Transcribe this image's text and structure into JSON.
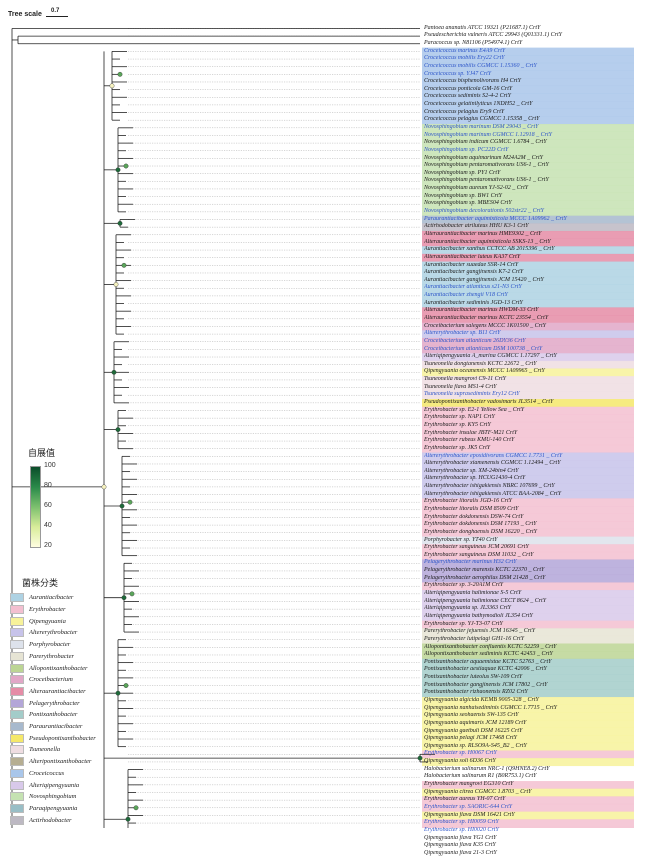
{
  "tree_scale": {
    "label": "Tree scale",
    "value": "0.7"
  },
  "bootstrap_legend": {
    "title": "自展值",
    "ticks": [
      "100",
      "80",
      "60",
      "40",
      "20"
    ]
  },
  "genus_legend_title": "菌株分类",
  "colors": {
    "Aurantiacibacter": "#aed2e3",
    "Erythrobacter": "#f3bfd0",
    "Qipengyuania": "#f7f29a",
    "Altererythrobacter": "#c7c3ea",
    "Porphyrobacter": "#dde2eb",
    "Parerythrobacter": "#e6e4d4",
    "Allopontixanthobacter": "#bcd594",
    "Croceibacterium": "#e1a7c7",
    "Alteraurantiacibacter": "#e58ca6",
    "Pelagerythrobacter": "#b3a6d8",
    "Pontixanthobacter": "#a3ccc9",
    "Paraurantiacibacter": "#a7b9cd",
    "Pseudopontixanthobacter": "#f5e86a",
    "Tsuneonella": "#efdde2",
    "Alteripontixanthobacter": "#b6ae92",
    "Croceicoccus": "#a9c6ea",
    "Alteriqipengyuania": "#d8c9ea",
    "Novosphingobium": "#c5e2b2",
    "Paraqipengyuania": "#99bec6",
    "Actirhodobacter": "#bdb9c3"
  },
  "genus_legend": [
    "Aurantiacibacter",
    "Erythrobacter",
    "Qipengyuania",
    "Altererythrobacter",
    "Porphyrobacter",
    "Parerythrobacter",
    "Allopontixanthobacter",
    "Croceibacterium",
    "Alteraurantiacibacter",
    "Pelagerythrobacter",
    "Pontixanthobacter",
    "Paraurantiacibacter",
    "Pseudopontixanthobacter",
    "Tsuneonella",
    "Alteripontixanthobacter",
    "Croceicoccus",
    "Alteriqipengyuania",
    "Novosphingobium",
    "Paraqipengyuania",
    "Actirhodobacter"
  ],
  "leaves": [
    {
      "label": "Pantoea ananatis ATCC 19321 (P21687.1) CrtY",
      "genus": "",
      "blue": false
    },
    {
      "label": "Pseudescherichia vulneris ATCC 29943 (Q01331.1) CrtY",
      "genus": "",
      "blue": false
    },
    {
      "label": "Paracoccus sp. N81106 (P54974.1) CrtY",
      "genus": "",
      "blue": false
    },
    {
      "label": "Croceicoccus marinus E4A9    CrtY",
      "genus": "Croceicoccus",
      "blue": true
    },
    {
      "label": "Croceicoccus mobilis Ery22    CrtY",
      "genus": "Croceicoccus",
      "blue": true
    },
    {
      "label": "Croceicoccus mobilis CGMCC 1.15360 _ CrtY",
      "genus": "Croceicoccus",
      "blue": true
    },
    {
      "label": "Croceicoccus sp. YJ47    CrtY",
      "genus": "Croceicoccus",
      "blue": true
    },
    {
      "label": "Croceicoccus bisphenolivorans H4    CrtY",
      "genus": "Croceicoccus",
      "blue": false
    },
    {
      "label": "Croceicoccus ponticola GM-16    CrtY",
      "genus": "Croceicoccus",
      "blue": false
    },
    {
      "label": "Croceicoccus sediminis S2-4-2    CrtY",
      "genus": "Croceicoccus",
      "blue": false
    },
    {
      "label": "Croceicoccus gelatinilyticus 1NDH52 _ CrtY",
      "genus": "Croceicoccus",
      "blue": false
    },
    {
      "label": "Croceicoccus pelagius Ery9    CrtY",
      "genus": "Croceicoccus",
      "blue": false
    },
    {
      "label": "Croceicoccus pelagius CGMCC 1.15358 _ CrtY",
      "genus": "Croceicoccus",
      "blue": false
    },
    {
      "label": "Novosphingobium marinum DSM 29043 _ CrtY",
      "genus": "Novosphingobium",
      "blue": true
    },
    {
      "label": "Novosphingobium marinum CGMCC 1.12918 _ CrtY",
      "genus": "Novosphingobium",
      "blue": true
    },
    {
      "label": "Novosphingobium indicum CGMCC 1.6784 _ CrtY",
      "genus": "Novosphingobium",
      "blue": false
    },
    {
      "label": "Novosphingobium sp. PC22D    CrtY",
      "genus": "Novosphingobium",
      "blue": true
    },
    {
      "label": "Novosphingobium aquimarinum M24A2M _ CrtY",
      "genus": "Novosphingobium",
      "blue": false
    },
    {
      "label": "Novosphingobium pentaromativorans US6-1 _ CrtY",
      "genus": "Novosphingobium",
      "blue": false
    },
    {
      "label": "Novosphingobium sp. PY1    CrtY",
      "genus": "Novosphingobium",
      "blue": false
    },
    {
      "label": "Novosphingobium pentaromativorans US6-1 _ CrtY",
      "genus": "Novosphingobium",
      "blue": false
    },
    {
      "label": "Novosphingobium aureum YJ-S2-02 _ CrtY",
      "genus": "Novosphingobium",
      "blue": false
    },
    {
      "label": "Novosphingobium sp. BW1    CrtY",
      "genus": "Novosphingobium",
      "blue": false
    },
    {
      "label": "Novosphingobium sp. MBES04    CrtY",
      "genus": "Novosphingobium",
      "blue": false
    },
    {
      "label": "Novosphingobium decolorationis 502str22 _ CrtY",
      "genus": "Novosphingobium",
      "blue": true
    },
    {
      "label": "Paraurantiacibacter aquimixticola MCCC 1A09962 _ CrtY",
      "genus": "Paraurantiacibacter",
      "blue": true
    },
    {
      "label": "Actirhodobacter atriluteus HHU K3-1    CrtY",
      "genus": "Actirhodobacter",
      "blue": false
    },
    {
      "label": "Alteraurantiacibacter marinus HME9302 _ CrtY",
      "genus": "Alteraurantiacibacter",
      "blue": false
    },
    {
      "label": "Alteraurantiacibacter aquimixticola SSKS-13 _ CrtY",
      "genus": "Alteraurantiacibacter",
      "blue": false
    },
    {
      "label": "Aurantiacibacter xanthus CCTCC AB 2015396 _ CrtY",
      "genus": "Aurantiacibacter",
      "blue": false
    },
    {
      "label": "Alteraurantiacibacter luteus KA37    CrtY",
      "genus": "Alteraurantiacibacter",
      "blue": false
    },
    {
      "label": "Aurantiacibacter suaedae SSR-14    CrtY",
      "genus": "Aurantiacibacter",
      "blue": false
    },
    {
      "label": "Aurantiacibacter gangjinensis K7-2    CrtY",
      "genus": "Aurantiacibacter",
      "blue": false
    },
    {
      "label": "Aurantiacibacter gangjinensis JCM 15420 _ CrtY",
      "genus": "Aurantiacibacter",
      "blue": false
    },
    {
      "label": "Aurantiacibacter atlanticus s21-N3    CrtY",
      "genus": "Aurantiacibacter",
      "blue": true
    },
    {
      "label": "Aurantiacibacter zhengii V18    CrtY",
      "genus": "Aurantiacibacter",
      "blue": true
    },
    {
      "label": "Aurantiacibacter sediminis JGD-13    CrtY",
      "genus": "Aurantiacibacter",
      "blue": false
    },
    {
      "label": "Alteraurantiacibacter marinus HWDM-33    CrtY",
      "genus": "Alteraurantiacibacter",
      "blue": false
    },
    {
      "label": "Alteraurantiacibacter marinus KCTC 23554 _ CrtY",
      "genus": "Alteraurantiacibacter",
      "blue": false
    },
    {
      "label": "Croceibacterium salegens MCCC 1K01500 _ CrtY",
      "genus": "Croceibacterium",
      "blue": false
    },
    {
      "label": "Altererythrobacter sp. B11    CrtY",
      "genus": "Altererythrobacter",
      "blue": true
    },
    {
      "label": "Croceibacterium atlanticum 26DY36    CrtY",
      "genus": "Croceibacterium",
      "blue": true
    },
    {
      "label": "Croceibacterium atlanticum DSM 100738 _ CrtY",
      "genus": "Croceibacterium",
      "blue": true
    },
    {
      "label": "Alteriqipengyuania A_marina CGMCC 1.17297 _ CrtY",
      "genus": "Alteriqipengyuania",
      "blue": false
    },
    {
      "label": "Tsuneonella dongtanensis KCTC 22672 _ CrtY",
      "genus": "Tsuneonella",
      "blue": false
    },
    {
      "label": "Qipengyuania oceanensis MCCC 1A09965 _ CrtY",
      "genus": "Qipengyuania",
      "blue": false
    },
    {
      "label": "Tsuneonella mangrovi C9-11    CrtY",
      "genus": "Tsuneonella",
      "blue": false
    },
    {
      "label": "Tsuneonella flava MS1-4    CrtY",
      "genus": "Tsuneonella",
      "blue": false
    },
    {
      "label": "Tsuneonella suprasediminis Ery12    CrtY",
      "genus": "Tsuneonella",
      "blue": true
    },
    {
      "label": "Pseudopontixanthobacter vadosimaris JL3514 _ CrtY",
      "genus": "Pseudopontixanthobacter",
      "blue": false
    },
    {
      "label": "Erythrobacter sp. E2-1 Yellow Sea _ CrtY",
      "genus": "Erythrobacter",
      "blue": false
    },
    {
      "label": "Erythrobacter sp. NAP1    CrtY",
      "genus": "Erythrobacter",
      "blue": false
    },
    {
      "label": "Erythrobacter sp. KY5    CrtY",
      "genus": "Erythrobacter",
      "blue": false
    },
    {
      "label": "Erythrobacter insulae JBTF-M21    CrtY",
      "genus": "Erythrobacter",
      "blue": false
    },
    {
      "label": "Erythrobacter rubeus KMU-140    CrtY",
      "genus": "Erythrobacter",
      "blue": false
    },
    {
      "label": "Erythrobacter sp. JK5    CrtY",
      "genus": "Erythrobacter",
      "blue": false
    },
    {
      "label": "Altererythrobacter epoxidivorans CGMCC 1.7731 _ CrtY",
      "genus": "Altererythrobacter",
      "blue": true
    },
    {
      "label": "Altererythrobacter xiamenensis CGMCC 1.12494 _ CrtY",
      "genus": "Altererythrobacter",
      "blue": false
    },
    {
      "label": "Altererythrobacter sp. XM-24bin4    CrtY",
      "genus": "Altererythrobacter",
      "blue": false
    },
    {
      "label": "Altererythrobacter sp. HCUG1430-4    CrtY",
      "genus": "Altererythrobacter",
      "blue": false
    },
    {
      "label": "Altererythrobacter ishigakiensis NBRC 107699 _ CrtY",
      "genus": "Altererythrobacter",
      "blue": false
    },
    {
      "label": "Altererythrobacter ishigakiensis ATCC BAA-2084 _ CrtY",
      "genus": "Altererythrobacter",
      "blue": false
    },
    {
      "label": "Erythrobacter litoralis JGD-16    CrtY",
      "genus": "Erythrobacter",
      "blue": false
    },
    {
      "label": "Erythrobacter litoralis DSM 8509    CrtY",
      "genus": "Erythrobacter",
      "blue": false
    },
    {
      "label": "Erythrobacter dokdonensis DSW-74    CrtY",
      "genus": "Erythrobacter",
      "blue": false
    },
    {
      "label": "Erythrobacter dokdonensis DSM 17193 _ CrtY",
      "genus": "Erythrobacter",
      "blue": false
    },
    {
      "label": "Erythrobacter donghaensis DSM 16220 _ CrtY",
      "genus": "Erythrobacter",
      "blue": false
    },
    {
      "label": "Porphyrobacter sp. YT40    CrtY",
      "genus": "Porphyrobacter",
      "blue": false
    },
    {
      "label": "Erythrobacter sanguineus JCM 20691    CrtY",
      "genus": "Erythrobacter",
      "blue": false
    },
    {
      "label": "Erythrobacter sanguineus DSM 11032 _ CrtY",
      "genus": "Erythrobacter",
      "blue": false
    },
    {
      "label": "Pelagerythrobacter marinus H32    CrtY",
      "genus": "Pelagerythrobacter",
      "blue": true
    },
    {
      "label": "Pelagerythrobacter marensis KCTC 22370 _ CrtY",
      "genus": "Pelagerythrobacter",
      "blue": false
    },
    {
      "label": "Pelagerythrobacter aerophilus DSM 21428 _ CrtY",
      "genus": "Pelagerythrobacter",
      "blue": false
    },
    {
      "label": "Erythrobacter sp. 3-20A1M    CrtY",
      "genus": "Erythrobacter",
      "blue": false
    },
    {
      "label": "Alteriqipengyuania halimionae S-5    CrtY",
      "genus": "Alteriqipengyuania",
      "blue": false
    },
    {
      "label": "Alteriqipengyuania halimionae CECT 8624 _ CrtY",
      "genus": "Alteriqipengyuania",
      "blue": false
    },
    {
      "label": "Alteriqipengyuania sp. JL3363    CrtY",
      "genus": "Alteriqipengyuania",
      "blue": false
    },
    {
      "label": "Alteriqipengyuania bathymodioli JL354    CrtY",
      "genus": "Alteriqipengyuania",
      "blue": false
    },
    {
      "label": "Erythrobacter sp. YJ-T3-07    CrtY",
      "genus": "Erythrobacter",
      "blue": false
    },
    {
      "label": "Parerythrobacter jejuensis JCM 16345 _ CrtY",
      "genus": "Parerythrobacter",
      "blue": false
    },
    {
      "label": "Parerythrobacter lutipelagi GH1-16    CrtY",
      "genus": "Parerythrobacter",
      "blue": false
    },
    {
      "label": "Allopontixanthobacter confluentis KCTC 52259 _ CrtY",
      "genus": "Allopontixanthobacter",
      "blue": false
    },
    {
      "label": "Allopontixanthobacter sediminis KCTC 42453 _ CrtY",
      "genus": "Allopontixanthobacter",
      "blue": false
    },
    {
      "label": "Pontixanthobacter aquaemixtae KCTC 52763 _ CrtY",
      "genus": "Pontixanthobacter",
      "blue": false
    },
    {
      "label": "Pontixanthobacter aestiaquae KCTC 42006 _ CrtY",
      "genus": "Pontixanthobacter",
      "blue": false
    },
    {
      "label": "Pontixanthobacter luteolus SW-109    CrtY",
      "genus": "Pontixanthobacter",
      "blue": false
    },
    {
      "label": "Pontixanthobacter gangjinensis JCM 17802 _ CrtY",
      "genus": "Pontixanthobacter",
      "blue": false
    },
    {
      "label": "Pontixanthobacter rizhaonensis RZ02    CrtY",
      "genus": "Pontixanthobacter",
      "blue": false
    },
    {
      "label": "Qipengyuania algicida KEMB 9005-328 _ CrtY",
      "genus": "Qipengyuania",
      "blue": false
    },
    {
      "label": "Qipengyuania nanhaisediminis CGMCC 1.7715 _ CrtY",
      "genus": "Qipengyuania",
      "blue": false
    },
    {
      "label": "Qipengyuania seohaensis SW-135    CrtY",
      "genus": "Qipengyuania",
      "blue": false
    },
    {
      "label": "Qipengyuania aquimaris JCM 12189    CrtY",
      "genus": "Qipengyuania",
      "blue": false
    },
    {
      "label": "Qipengyuania gaetbuli DSM 16225    CrtY",
      "genus": "Qipengyuania",
      "blue": false
    },
    {
      "label": "Qipengyuania pelagi JCM 17468    CrtY",
      "genus": "Qipengyuania",
      "blue": false
    },
    {
      "label": "Qipengyuania sp. RLSO9A-S45_B2 _ CrtY",
      "genus": "Qipengyuania",
      "blue": false
    },
    {
      "label": "Erythrobacter sp. H0067    CrtY",
      "genus": "Erythrobacter",
      "blue": true
    },
    {
      "label": "Qipengyuania soli 6D36    CrtY",
      "genus": "Qipengyuania",
      "blue": false
    },
    {
      "label": "Halobacterium salinarum NRC-1 (Q9HNE8.2) CrtY",
      "genus": "",
      "blue": false
    },
    {
      "label": "Halobacterium salinarum R1 (B0R753.1) CrtY",
      "genus": "",
      "blue": false
    },
    {
      "label": "Erythrobacter mangrovi EG310    CrtY",
      "genus": "Erythrobacter",
      "blue": false
    },
    {
      "label": "Qipengyuania citrea CGMCC 1.8703 _ CrtY",
      "genus": "Qipengyuania",
      "blue": false
    },
    {
      "label": "Erythrobacter aureus YH-07    CrtY",
      "genus": "Erythrobacter",
      "blue": false
    },
    {
      "label": "Erythrobacter sp. SAORIC-644    CrtY",
      "genus": "Erythrobacter",
      "blue": true
    },
    {
      "label": "Qipengyuania flava DSM 16421    CrtY",
      "genus": "Qipengyuania",
      "blue": false
    },
    {
      "label": "Erythrobacter sp. HI0059    CrtY",
      "genus": "Erythrobacter",
      "blue": true
    },
    {
      "label": "Erythrobacter sp. HI0020    CrtY",
      "genus": "Erythrobacter",
      "blue": true
    },
    {
      "label": "Qipengyuania flava YG1    CrtY",
      "genus": "Qipengyuania",
      "blue": false
    },
    {
      "label": "Qipengyuania flava K35    CrtY",
      "genus": "Qipengyuania",
      "blue": false
    },
    {
      "label": "Qipengyuania flava 21-3    CrtY",
      "genus": "Qipengyuania",
      "blue": false
    }
  ]
}
